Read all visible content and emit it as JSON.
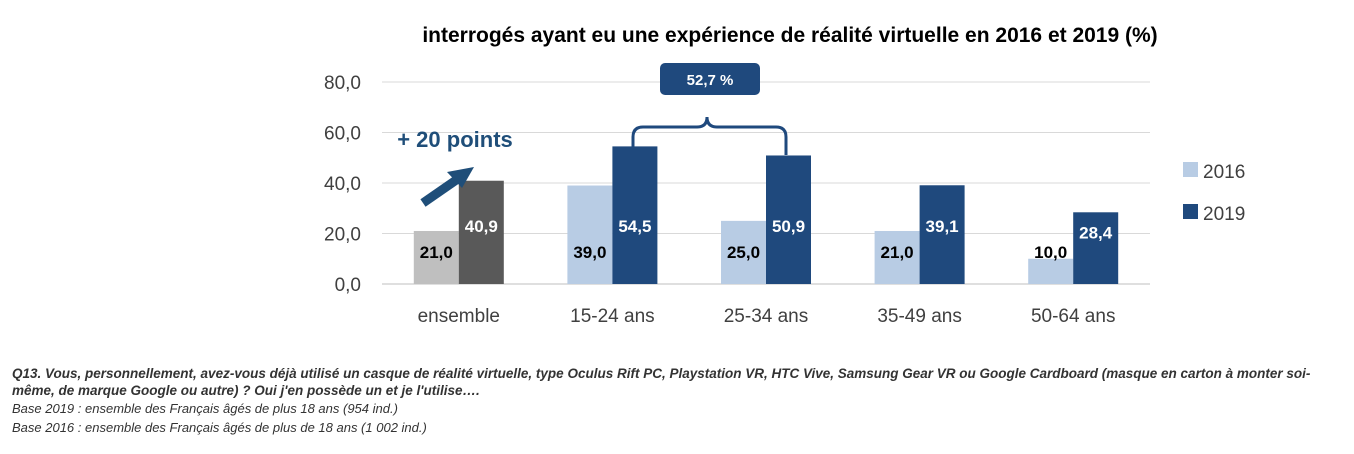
{
  "chart_data": {
    "type": "bar",
    "title": "interrogés ayant eu une expérience de réalité virtuelle en 2016 et 2019  (%)",
    "categories": [
      "ensemble",
      "15-24 ans",
      "25-34 ans",
      "35-49 ans",
      "50-64 ans"
    ],
    "series": [
      {
        "name": "2016",
        "values": [
          21.0,
          39.0,
          25.0,
          21.0,
          10.0
        ],
        "labels": [
          "21,0",
          "39,0",
          "25,0",
          "21,0",
          "10,0"
        ],
        "color": "#b8cce4",
        "first_color": "#bfbfbf"
      },
      {
        "name": "2019",
        "values": [
          40.9,
          54.5,
          50.9,
          39.1,
          28.4
        ],
        "labels": [
          "40,9",
          "54,5",
          "50,9",
          "39,1",
          "28,4"
        ],
        "color": "#1f497d",
        "first_color": "#595959"
      }
    ],
    "ylim": [
      0,
      80
    ],
    "yticks": [
      "0,0",
      "20,0",
      "40,0",
      "60,0",
      "80,0"
    ],
    "grid": true,
    "legend": "right",
    "annotations": {
      "ensemble_increase": "+ 20 points",
      "age_15_34": "52,7 %"
    }
  },
  "footnotes": {
    "question": "Q13. Vous, personnellement, avez-vous déjà utilisé un casque de réalité virtuelle, type Oculus Rift PC, Playstation VR, HTC Vive, Samsung Gear VR ou Google Cardboard (masque en carton à monter soi-même, de marque Google ou autre) ? Oui j'en possède un et je l'utilise….",
    "base_2019": "Base 2019 : ensemble des Français âgés de plus 18 ans (954 ind.)",
    "base_2016": "Base 2016 : ensemble des Français âgés de plus de 18 ans (1 002 ind.)"
  }
}
